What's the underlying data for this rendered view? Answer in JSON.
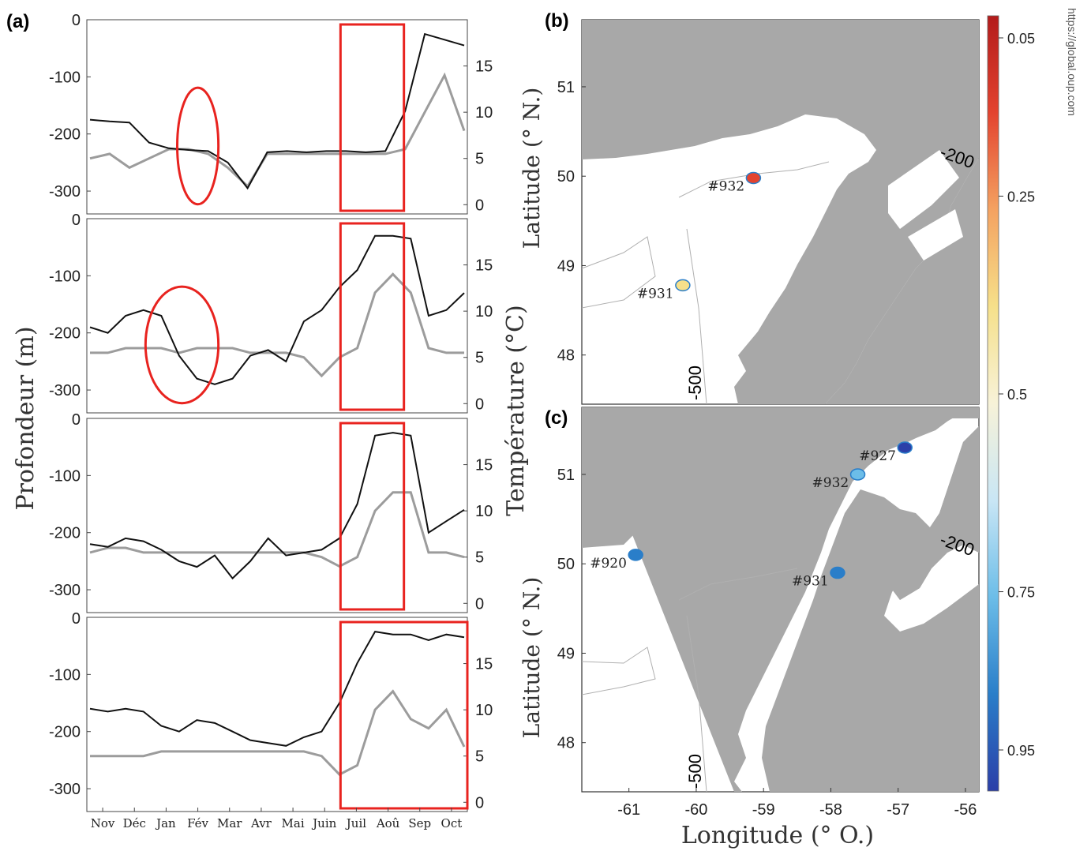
{
  "source_url": "https://global.oup.com",
  "colors": {
    "land": "#a9a9a9",
    "sea": "#ffffff",
    "highlight": "#e8231f",
    "depth_trace": "#111111",
    "temp_trace": "#9c9c9c"
  },
  "chart_data": [
    {
      "type": "line",
      "panel_label": "(a)",
      "ylabel_left": "Profondeur (m)",
      "ylabel_right": "Température (°C)",
      "months": [
        "Nov",
        "Déc",
        "Jan",
        "Fév",
        "Mar",
        "Avr",
        "Mai",
        "Juin",
        "Juil",
        "Aoû",
        "Sep",
        "Oct"
      ],
      "depth_ticks": [
        "0",
        "-100",
        "-200",
        "-300"
      ],
      "temp_ticks": [
        "15",
        "10",
        "5",
        "0"
      ],
      "ylim_depth": [
        -340,
        0
      ],
      "ylim_temp": [
        -1,
        20
      ],
      "subpanels": [
        {
          "depth_m": [
            -175,
            -178,
            -180,
            -215,
            -225,
            -228,
            -230,
            -250,
            -295,
            -232,
            -230,
            -232,
            -230,
            -230,
            -232,
            -230,
            -160,
            -25,
            -35,
            -45
          ],
          "temp_c": [
            5,
            5.5,
            4,
            5,
            6,
            6,
            5.5,
            4,
            2,
            5.5,
            5.5,
            5.5,
            5.5,
            5.5,
            5.5,
            5.5,
            6,
            10,
            14,
            8
          ],
          "highlights": [
            {
              "shape": "ellipse",
              "months": [
                "Fév"
              ]
            },
            {
              "shape": "rect",
              "months": [
                "Juil",
                "Aoû"
              ]
            }
          ]
        },
        {
          "depth_m": [
            -190,
            -200,
            -170,
            -160,
            -170,
            -240,
            -280,
            -290,
            -280,
            -240,
            -230,
            -250,
            -180,
            -160,
            -120,
            -90,
            -30,
            -30,
            -35,
            -170,
            -160,
            -130
          ],
          "temp_c": [
            5.5,
            5.5,
            6,
            6,
            6,
            5.5,
            6,
            6,
            6,
            5.5,
            5.5,
            5.5,
            5,
            3,
            5,
            6,
            12,
            14,
            12,
            6,
            5.5,
            5.5
          ],
          "highlights": [
            {
              "shape": "ellipse",
              "months": [
                "Jan",
                "Fév"
              ]
            },
            {
              "shape": "rect",
              "months": [
                "Juil",
                "Aoû"
              ]
            }
          ]
        },
        {
          "depth_m": [
            -220,
            -225,
            -210,
            -215,
            -230,
            -250,
            -260,
            -240,
            -280,
            -250,
            -210,
            -240,
            -235,
            -230,
            -210,
            -150,
            -30,
            -25,
            -30,
            -200,
            -180,
            -160
          ],
          "temp_c": [
            5.5,
            6,
            6,
            5.5,
            5.5,
            5.5,
            5.5,
            5.5,
            5.5,
            5.5,
            5.5,
            5.5,
            5.5,
            5,
            4,
            5,
            10,
            12,
            12,
            5.5,
            5.5,
            5
          ],
          "highlights": [
            {
              "shape": "rect",
              "months": [
                "Juil",
                "Aoû"
              ]
            }
          ]
        },
        {
          "depth_m": [
            -160,
            -165,
            -160,
            -165,
            -190,
            -200,
            -180,
            -185,
            -200,
            -215,
            -220,
            -225,
            -210,
            -200,
            -150,
            -80,
            -25,
            -30,
            -30,
            -40,
            -30,
            -35
          ],
          "temp_c": [
            5,
            5,
            5,
            5,
            5.5,
            5.5,
            5.5,
            5.5,
            5.5,
            5.5,
            5.5,
            5.5,
            5.5,
            5,
            3,
            4,
            10,
            12,
            9,
            8,
            10,
            6
          ],
          "highlights": [
            {
              "shape": "rect",
              "months": [
                "Juil",
                "Aoû",
                "Sep",
                "Oct"
              ]
            }
          ]
        }
      ]
    },
    {
      "type": "heatmap",
      "panel_label": "(b)",
      "ylabel": "Latitude (° N.)",
      "lat_ticks": [
        "51",
        "50",
        "49",
        "48"
      ],
      "contours": [
        "-200",
        "-500"
      ],
      "stations": [
        {
          "label": "#932",
          "lon": -59.15,
          "lat": 49.98,
          "value": 0.2
        },
        {
          "label": "#931",
          "lon": -60.2,
          "lat": 48.78,
          "value": 0.4
        }
      ]
    },
    {
      "type": "heatmap",
      "panel_label": "(c)",
      "ylabel": "Latitude (° N.)",
      "xlabel": "Longitude (° O.)",
      "lat_ticks": [
        "51",
        "50",
        "49",
        "48"
      ],
      "lon_ticks": [
        "-61",
        "-60",
        "-59",
        "-58",
        "-57",
        "-56"
      ],
      "contours": [
        "-200",
        "-500"
      ],
      "stations": [
        {
          "label": "#927",
          "lon": -56.9,
          "lat": 51.3,
          "value": 0.9
        },
        {
          "label": "#932",
          "lon": -57.6,
          "lat": 51.0,
          "value": 0.75
        },
        {
          "label": "#920",
          "lon": -60.9,
          "lat": 50.1,
          "value": 0.8
        },
        {
          "label": "#931",
          "lon": -57.9,
          "lat": 49.9,
          "value": 0.85
        }
      ]
    },
    {
      "type": "colorbar",
      "tick_labels": [
        "0.05",
        "0.25",
        "0.5",
        "0.75",
        "0.95"
      ],
      "stops": [
        "#b31b1b",
        "#e3432f",
        "#f4a261",
        "#f6e08a",
        "#f7f2d8",
        "#c9e6f5",
        "#6cbde8",
        "#2a7ec9",
        "#2b3fa8"
      ]
    }
  ]
}
